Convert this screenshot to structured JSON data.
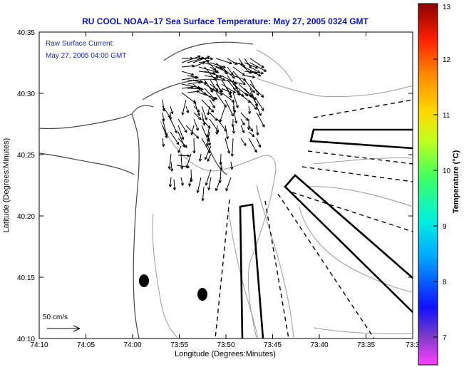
{
  "chart_data": {
    "type": "map",
    "title": "RU COOL  NOAA–17  Sea Surface Temperature:  May 27, 2005 0324 GMT",
    "xlabel": "Longitude (Degrees:Minutes)",
    "ylabel": "Latitude (Degrees:Minutes)",
    "x_ticks": [
      "74:10",
      "74:05",
      "74:00",
      "73:55",
      "73:50",
      "73:45",
      "73:40",
      "73:35",
      "73:3"
    ],
    "y_ticks": [
      "40:35",
      "40:30",
      "40:25",
      "40:20",
      "40:15",
      "40:10"
    ],
    "annotations": {
      "current_line1": "Raw Surface Current:",
      "current_line2": "May 27, 2005 04:00 GMT",
      "scale_label": "50 cm/s"
    },
    "colorbar": {
      "label": "Temperature (°C)",
      "range": [
        6.5,
        13
      ],
      "ticks": [
        "13",
        "12",
        "11",
        "10",
        "9",
        "8",
        "7"
      ]
    },
    "sst": "no data (white, clouded)"
  },
  "colors": {
    "title": "#0a1aa8",
    "annotation": "#1a2ab0",
    "coastline": "#444444",
    "contour": "#999999",
    "vector": "#000000"
  }
}
